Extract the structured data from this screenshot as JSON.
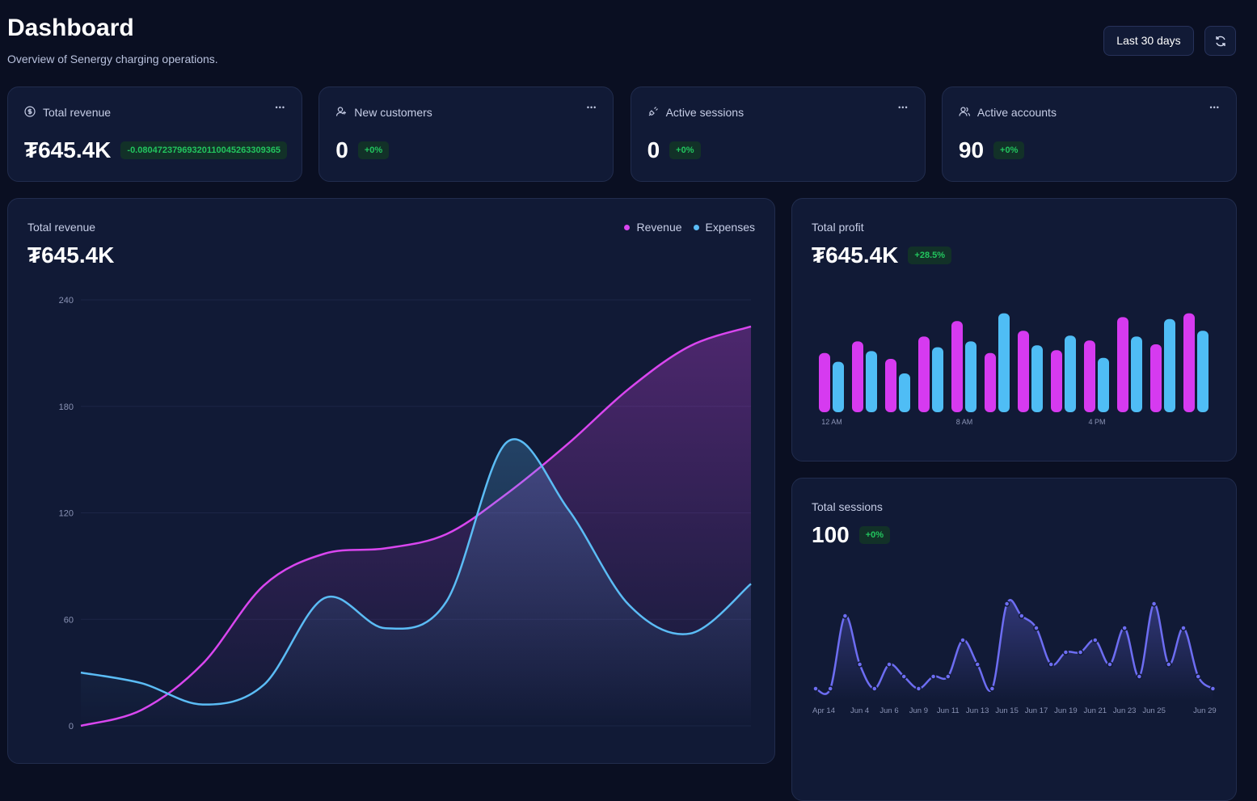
{
  "header": {
    "title": "Dashboard",
    "subtitle": "Overview of Senergy charging operations.",
    "range_button": "Last 30 days"
  },
  "stats": [
    {
      "label": "Total revenue",
      "value": "₮645.4K",
      "change": "-0.08047237969320110045263309365"
    },
    {
      "label": "New customers",
      "value": 0,
      "change": "+0%"
    },
    {
      "label": "Active sessions",
      "value": 0,
      "change": "+0%"
    },
    {
      "label": "Active accounts",
      "value": 90,
      "change": "+0%"
    }
  ],
  "chart_data": [
    {
      "type": "area",
      "title": "Total revenue",
      "total": "₮645.4K",
      "categories": [
        null,
        null,
        null,
        null,
        null,
        null,
        null,
        null,
        null,
        null,
        null,
        null
      ],
      "series": [
        {
          "name": "Revenue",
          "color": "#d946ef",
          "values": [
            0,
            9,
            35,
            79,
            97,
            100,
            108,
            131,
            159,
            190,
            214,
            225
          ]
        },
        {
          "name": "Expenses",
          "color": "#5bbcf5",
          "values": [
            30,
            24,
            12,
            23,
            72,
            55,
            70,
            160,
            122,
            68,
            52,
            80
          ]
        }
      ],
      "ylim": [
        0,
        240
      ],
      "yticks": [
        0,
        60,
        120,
        180,
        240
      ],
      "grid": true
    },
    {
      "type": "bar",
      "title": "Total profit",
      "total": "₮645.4K",
      "change": "+28.5%",
      "categories": [
        "12 AM",
        null,
        null,
        null,
        "8 AM",
        null,
        null,
        null,
        "4 PM",
        null,
        null,
        null
      ],
      "series": [
        {
          "color": "#d63af0",
          "values": [
            61,
            73,
            55,
            78,
            94,
            61,
            84,
            64,
            74,
            98,
            70,
            102
          ]
        },
        {
          "color": "#4fbdf5",
          "values": [
            52,
            63,
            40,
            67,
            73,
            102,
            69,
            79,
            56,
            78,
            96,
            84
          ]
        }
      ],
      "ylim": [
        0,
        110
      ]
    },
    {
      "type": "line",
      "title": "Total sessions",
      "total": 100,
      "change": "+0%",
      "categories": [
        "Apr 14",
        null,
        null,
        "Jun 4",
        null,
        "Jun 6",
        null,
        "Jun 9",
        null,
        "Jun 11",
        null,
        "Jun 13",
        null,
        "Jun 15",
        null,
        "Jun 17",
        null,
        "Jun 19",
        null,
        "Jun 21",
        null,
        "Jun 23",
        null,
        "Jun 25",
        null,
        null,
        null,
        "Jun 29"
      ],
      "color": "#6d6df2",
      "values": [
        1,
        1,
        7,
        3,
        1,
        3,
        2,
        1,
        2,
        2,
        5,
        3,
        1,
        8,
        7,
        6,
        3,
        4,
        4,
        5,
        3,
        6,
        2,
        8,
        3,
        6,
        2,
        1
      ],
      "ylim": [
        0,
        8
      ]
    }
  ]
}
